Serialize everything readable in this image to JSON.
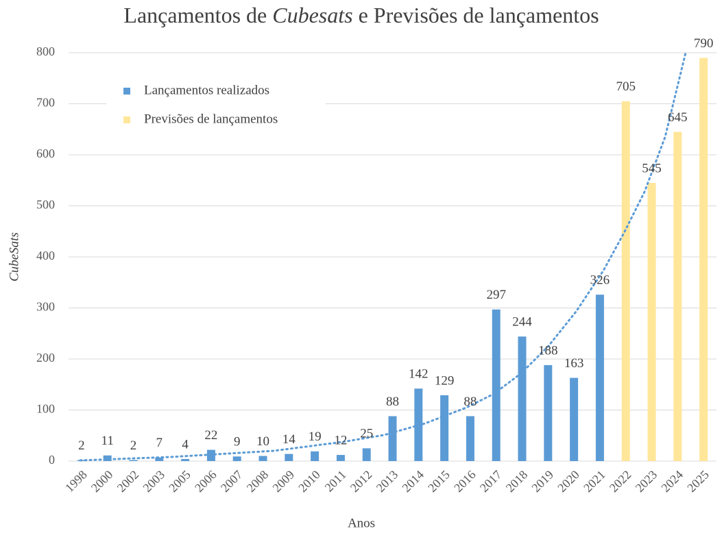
{
  "chart_data": {
    "type": "bar",
    "title": [
      "Lançamentos de ",
      "Cubesats",
      " e Previsões de lançamentos"
    ],
    "x_label": "Anos",
    "y_label": "CubeSats",
    "categories": [
      "1998",
      "2000",
      "2002",
      "2003",
      "2005",
      "2006",
      "2007",
      "2008",
      "2009",
      "2010",
      "2011",
      "2012",
      "2013",
      "2014",
      "2015",
      "2016",
      "2017",
      "2018",
      "2019",
      "2020",
      "2021",
      "2022",
      "2023",
      "2024",
      "2025"
    ],
    "series": [
      {
        "name": "Lançamentos realizados",
        "color": "#5b9bd5",
        "values": [
          2,
          11,
          2,
          7,
          4,
          22,
          9,
          10,
          14,
          19,
          12,
          25,
          88,
          142,
          129,
          88,
          297,
          244,
          188,
          163,
          326,
          null,
          null,
          null,
          null
        ]
      },
      {
        "name": "Previsões de lançamentos",
        "color": "#ffe699",
        "values": [
          null,
          null,
          null,
          null,
          null,
          null,
          null,
          null,
          null,
          null,
          null,
          null,
          null,
          null,
          null,
          null,
          null,
          null,
          null,
          null,
          null,
          705,
          545,
          645,
          790
        ]
      }
    ],
    "ylim": [
      0,
      800
    ],
    "yticks": [
      0,
      100,
      200,
      300,
      400,
      500,
      600,
      700,
      800
    ],
    "grid": true,
    "legend": "upper left"
  }
}
